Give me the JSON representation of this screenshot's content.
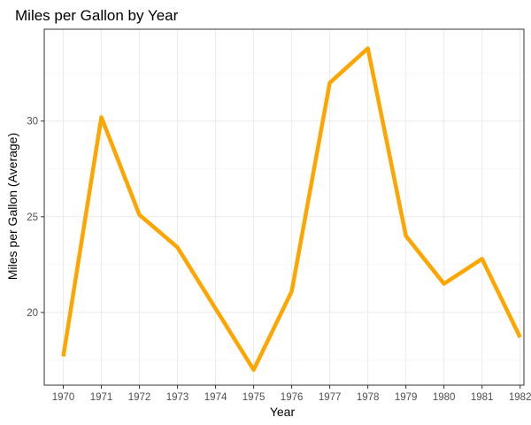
{
  "chart_data": {
    "type": "line",
    "title": "Miles per Gallon by Year",
    "xlabel": "Year",
    "ylabel": "Miles per Gallon (Average)",
    "x": [
      "1970",
      "1971",
      "1972",
      "1973",
      "1974",
      "1975",
      "1976",
      "1977",
      "1978",
      "1979",
      "1980",
      "1981",
      "1982"
    ],
    "series": [
      {
        "values": [
          17.7,
          30.2,
          25.1,
          23.4,
          20.2,
          17.0,
          21.1,
          32.0,
          33.8,
          24.0,
          21.5,
          22.8,
          18.7
        ]
      }
    ],
    "xticks": [
      "1970",
      "1971",
      "1972",
      "1973",
      "1974",
      "1975",
      "1976",
      "1977",
      "1978",
      "1979",
      "1980",
      "1981",
      "1982"
    ],
    "yticks": [
      20,
      25,
      30
    ],
    "ylim": [
      16.2,
      34.8
    ],
    "grid": true,
    "legend": "none",
    "line_color": "#FFA500",
    "panel_border_color": "#333333",
    "grid_color": "#ebebeb"
  }
}
